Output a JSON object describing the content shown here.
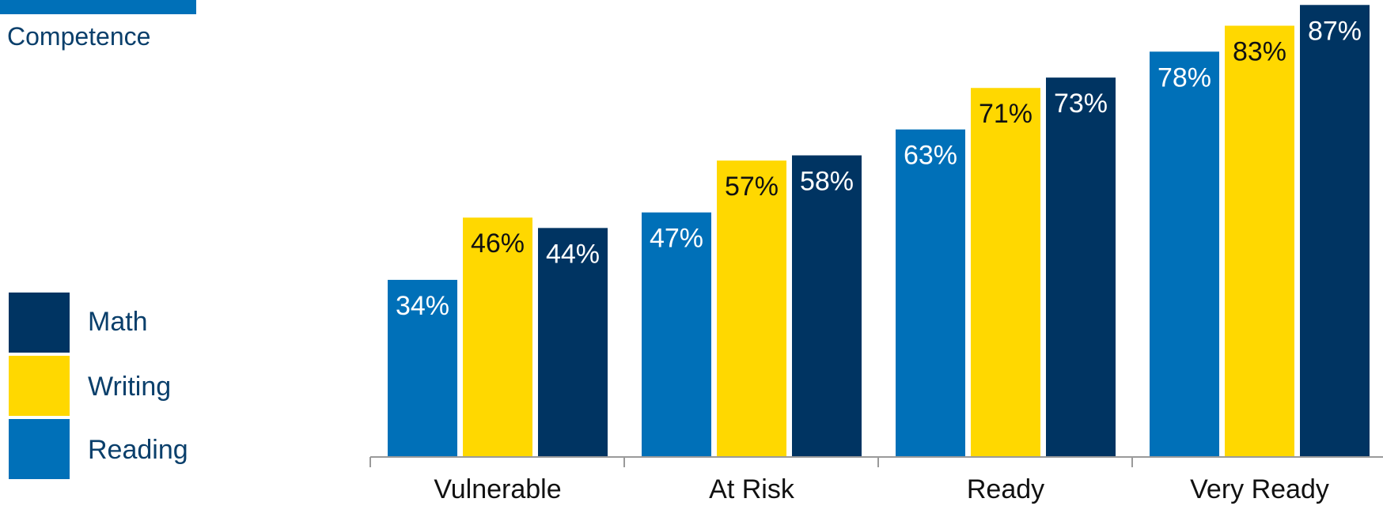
{
  "header": {
    "title": "Competence"
  },
  "colors": {
    "reading": "#0070B8",
    "writing": "#FFD800",
    "math": "#003462",
    "top_bar": "#0070B8"
  },
  "legend": [
    {
      "key": "math",
      "label": "Math",
      "color": "#003462"
    },
    {
      "key": "writing",
      "label": "Writing",
      "color": "#FFD800"
    },
    {
      "key": "reading",
      "label": "Reading",
      "color": "#0070B8"
    }
  ],
  "chart_data": {
    "type": "bar",
    "categories": [
      "Vulnerable",
      "At Risk",
      "Ready",
      "Very Ready"
    ],
    "series": [
      {
        "name": "Reading",
        "color": "#0070B8",
        "label_color": "#ffffff",
        "values": [
          34,
          47,
          63,
          78
        ]
      },
      {
        "name": "Writing",
        "color": "#FFD800",
        "label_color": "#111111",
        "values": [
          46,
          57,
          71,
          83
        ]
      },
      {
        "name": "Math",
        "color": "#003462",
        "label_color": "#ffffff",
        "values": [
          44,
          58,
          73,
          87
        ]
      }
    ],
    "value_suffix": "%",
    "ylim": [
      0,
      100
    ],
    "grid": false,
    "legend_position": "left"
  }
}
